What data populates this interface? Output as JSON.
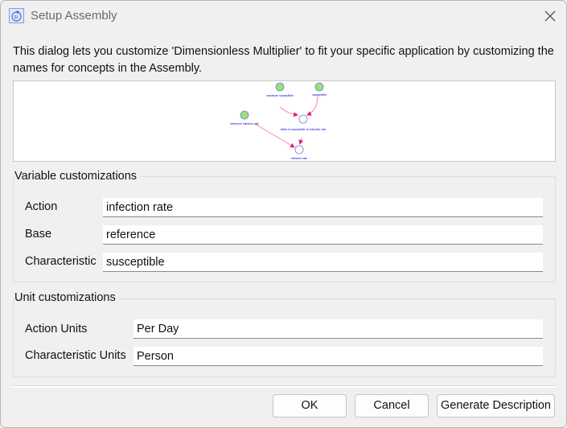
{
  "window": {
    "title": "Setup Assembly",
    "icon": "assembly-app-icon",
    "close_icon": "close-icon"
  },
  "description": "This dialog lets you customize 'Dimensionless Multiplier' to fit your specific application by customizing the names for concepts in the Assembly.",
  "diagram": {
    "nodes": {
      "maximum_susceptible": "maximum susceptible",
      "susceptible": "susceptible",
      "reference_infection_rate": "reference infection rate",
      "effect": "effect of susceptible on infection rate",
      "infection_rate": "infection rate"
    },
    "colors": {
      "stock": "#90e070",
      "aux": "#7070e0",
      "link": "#ff5fa0",
      "text": "#0000cc"
    }
  },
  "variable_group": {
    "legend": "Variable customizations",
    "fields": [
      {
        "label": "Action",
        "value": "infection rate"
      },
      {
        "label": "Base",
        "value": "reference"
      },
      {
        "label": "Characteristic",
        "value": "susceptible"
      }
    ]
  },
  "unit_group": {
    "legend": "Unit customizations",
    "fields": [
      {
        "label": "Action Units",
        "value": "Per Day"
      },
      {
        "label": "Characteristic Units",
        "value": "Person"
      }
    ]
  },
  "buttons": {
    "ok": "OK",
    "cancel": "Cancel",
    "generate": "Generate Description"
  }
}
